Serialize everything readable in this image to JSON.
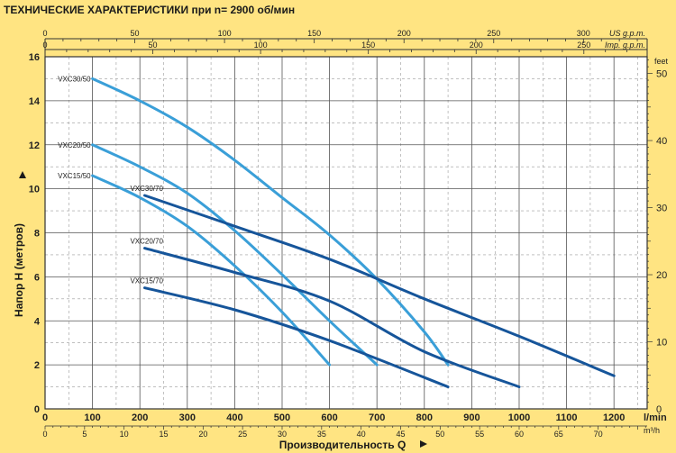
{
  "chart_data": {
    "type": "line",
    "title": "ТЕХНИЧЕСКИЕ ХАРАКТЕРИСТИКИ при n= 2900 об/мин",
    "xlabel": "Производительность Q",
    "ylabel": "Напор H  (метров)",
    "x_unit": "l/min",
    "x_unit_secondary": "m³/h",
    "x_top1_unit": "US g.p.m.",
    "x_top2_unit": "Imp. g.p.m.",
    "y_unit_right": "feet",
    "xlim": [
      0,
      1270
    ],
    "ylim": [
      0,
      16
    ],
    "x_ticks": [
      0,
      100,
      200,
      300,
      400,
      500,
      600,
      700,
      800,
      900,
      1000,
      1100,
      1200
    ],
    "y_ticks": [
      0,
      2,
      4,
      6,
      8,
      10,
      12,
      14,
      16
    ],
    "m3h_ticks": [
      0,
      5,
      10,
      15,
      20,
      25,
      30,
      35,
      40,
      45,
      50,
      55,
      60,
      65,
      70
    ],
    "usgpm_ticks": [
      0,
      50,
      100,
      150,
      200,
      250,
      300
    ],
    "impgpm_ticks": [
      0,
      50,
      100,
      150,
      200,
      250
    ],
    "feet_ticks": [
      0,
      10,
      20,
      30,
      40,
      50
    ],
    "grid": true,
    "series": [
      {
        "name": "VXC30/50",
        "color": "#3a9fd8",
        "label_pos": "left",
        "x": [
          100,
          200,
          300,
          400,
          500,
          600,
          700,
          800,
          850
        ],
        "y": [
          15.0,
          14.0,
          12.8,
          11.3,
          9.6,
          7.9,
          5.9,
          3.5,
          2.0
        ]
      },
      {
        "name": "VXC20/50",
        "color": "#3a9fd8",
        "label_pos": "left",
        "x": [
          100,
          200,
          300,
          400,
          500,
          600,
          700
        ],
        "y": [
          12.0,
          11.0,
          9.8,
          8.1,
          6.1,
          4.0,
          2.0
        ]
      },
      {
        "name": "VXC15/50",
        "color": "#3a9fd8",
        "label_pos": "left",
        "x": [
          100,
          200,
          300,
          400,
          500,
          600
        ],
        "y": [
          10.6,
          9.6,
          8.3,
          6.5,
          4.4,
          2.0
        ]
      },
      {
        "name": "VXC30/70",
        "color": "#16559a",
        "label_pos": "above",
        "x": [
          210,
          400,
          600,
          800,
          1000,
          1200
        ],
        "y": [
          9.7,
          8.3,
          6.8,
          5.0,
          3.3,
          1.5
        ]
      },
      {
        "name": "VXC20/70",
        "color": "#16559a",
        "label_pos": "above",
        "x": [
          210,
          400,
          600,
          800,
          1000
        ],
        "y": [
          7.3,
          6.2,
          4.9,
          2.6,
          1.0
        ]
      },
      {
        "name": "VXC15/70",
        "color": "#16559a",
        "label_pos": "above",
        "x": [
          210,
          400,
          600,
          850
        ],
        "y": [
          5.5,
          4.5,
          3.1,
          1.0
        ]
      }
    ]
  }
}
